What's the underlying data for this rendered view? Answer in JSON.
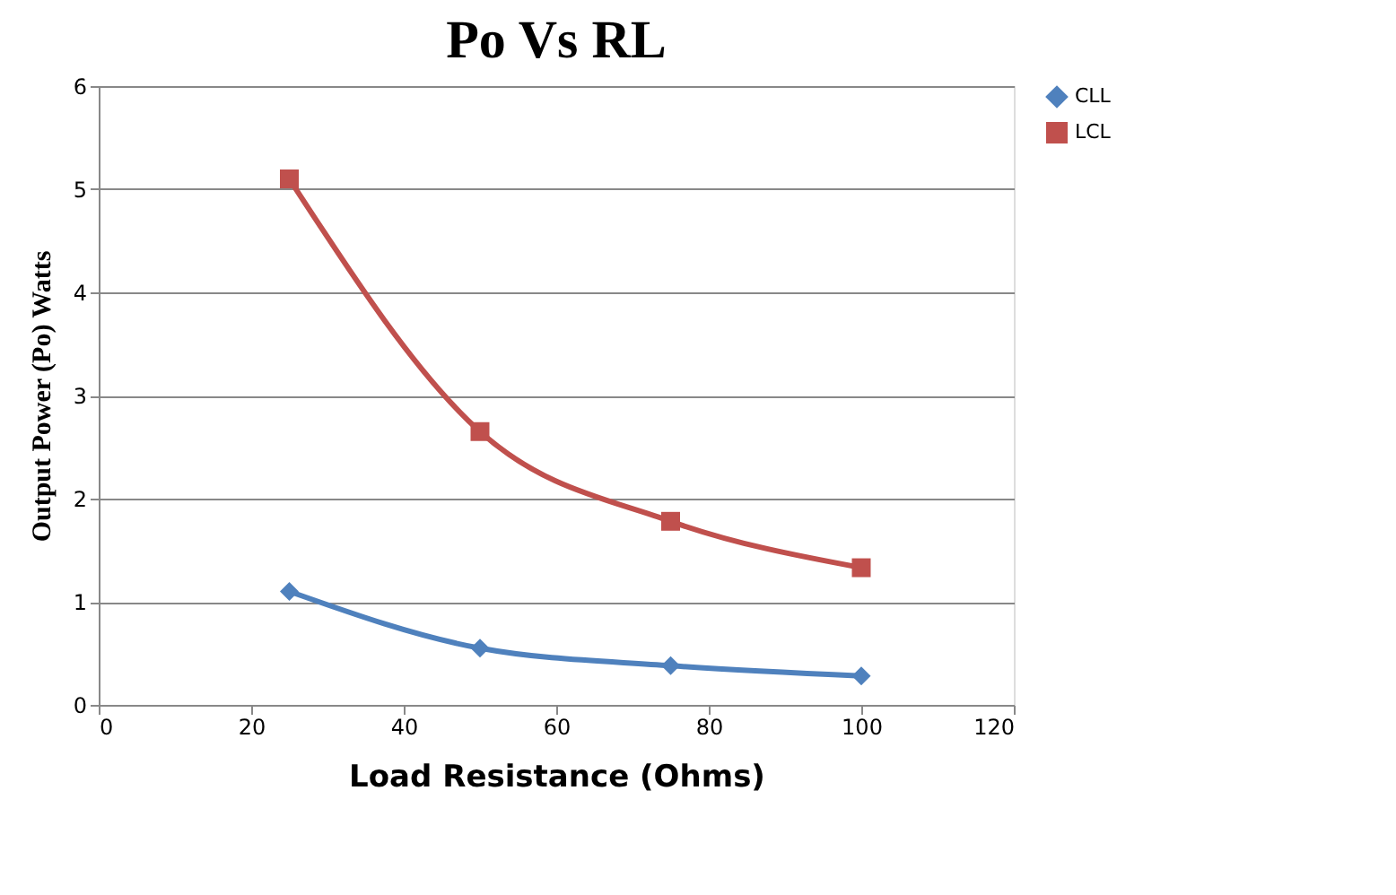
{
  "chart_data": {
    "type": "line",
    "title": "Po Vs RL",
    "xlabel": "Load Resistance (Ohms)",
    "ylabel": "Output Power (Po) Watts",
    "x": [
      25,
      50,
      75,
      100
    ],
    "series": [
      {
        "name": "CLL",
        "color": "#4f81bd",
        "marker": "diamond",
        "values": [
          1.1,
          0.55,
          0.38,
          0.28
        ]
      },
      {
        "name": "LCL",
        "color": "#c0504d",
        "marker": "square",
        "values": [
          5.1,
          2.65,
          1.78,
          1.33
        ]
      }
    ],
    "xlim": [
      0,
      120
    ],
    "xticks": [
      0,
      20,
      40,
      60,
      80,
      100,
      120
    ],
    "ylim": [
      0,
      6
    ],
    "yticks": [
      0,
      1,
      2,
      3,
      4,
      5,
      6
    ],
    "grid": "y",
    "legend": "right",
    "line_style": "solid"
  }
}
